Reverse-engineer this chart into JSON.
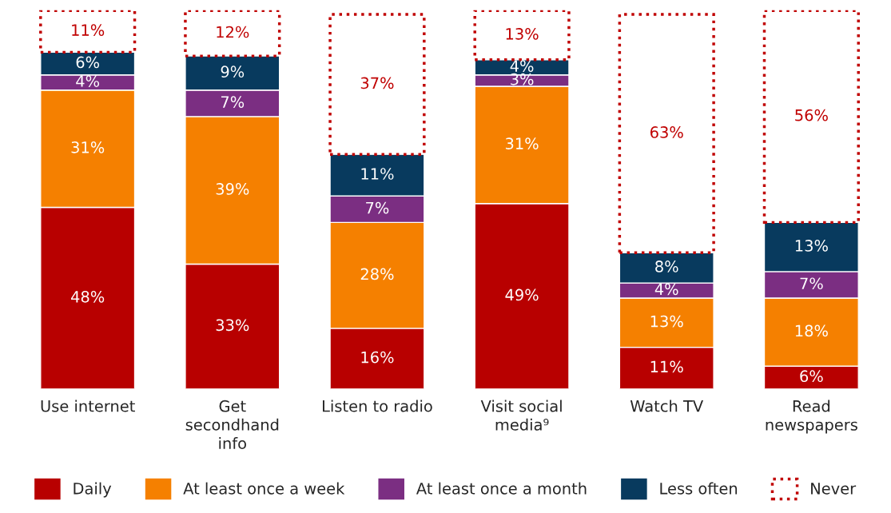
{
  "chart_data": {
    "type": "bar",
    "stacked": true,
    "legend": "bottom",
    "grid": false,
    "tick_labels": "x",
    "categories": [
      "Use internet",
      "Get\nsecondhand\ninfo",
      "Listen to radio",
      "Visit social\nmedia⁹",
      "Watch TV",
      "Read\nnewspapers"
    ],
    "series": [
      {
        "name": "Daily",
        "color": "#b80000",
        "values": [
          48,
          33,
          16,
          49,
          11,
          6
        ],
        "value_labels": [
          "48%",
          "33%",
          "16%",
          "49%",
          "11%",
          "6%"
        ]
      },
      {
        "name": "At least once a week",
        "color": "#f58000",
        "values": [
          31,
          39,
          28,
          31,
          13,
          18
        ],
        "value_labels": [
          "31%",
          "39%",
          "28%",
          "31%",
          "13%",
          "18%"
        ]
      },
      {
        "name": "At least once a month",
        "color": "#7b2e82",
        "values": [
          4,
          7,
          7,
          3,
          4,
          7
        ],
        "value_labels": [
          "4%",
          "7%",
          "7%",
          "3%",
          "4%",
          "7%"
        ]
      },
      {
        "name": "Less often",
        "color": "#083a5e",
        "values": [
          6,
          9,
          11,
          4,
          8,
          13
        ],
        "value_labels": [
          "6%",
          "9%",
          "11%",
          "4%",
          "8%",
          "13%"
        ]
      },
      {
        "name": "Never",
        "color": "#c00000",
        "line_style": "dotted",
        "values": [
          11,
          12,
          37,
          13,
          63,
          56
        ],
        "value_labels": [
          "11%",
          "12%",
          "37%",
          "13%",
          "63%",
          "56%"
        ]
      }
    ]
  }
}
